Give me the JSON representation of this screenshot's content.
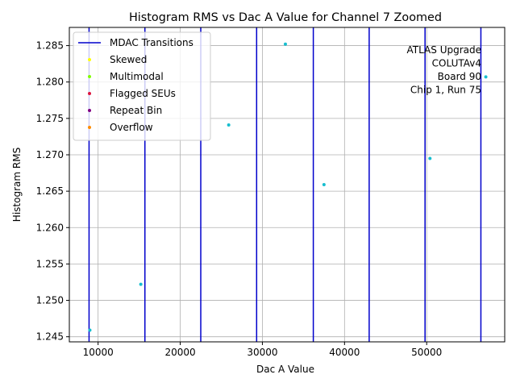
{
  "chart_data": {
    "type": "scatter",
    "title": "Histogram RMS vs Dac A Value for Channel 7 Zoomed",
    "xlabel": "Dac A Value",
    "ylabel": "Histogram RMS",
    "xlim": [
      6500,
      59500
    ],
    "ylim": [
      1.2443,
      1.2875
    ],
    "xticks": [
      10000,
      20000,
      30000,
      40000,
      50000
    ],
    "xtick_labels": [
      "10000",
      "20000",
      "30000",
      "40000",
      "50000"
    ],
    "yticks": [
      1.245,
      1.25,
      1.255,
      1.26,
      1.265,
      1.27,
      1.275,
      1.28,
      1.285
    ],
    "ytick_labels": [
      "1.245",
      "1.250",
      "1.255",
      "1.260",
      "1.265",
      "1.270",
      "1.275",
      "1.280",
      "1.285"
    ],
    "grid": true,
    "points": [
      {
        "x": 9000,
        "y": 1.2459
      },
      {
        "x": 15200,
        "y": 1.2522
      },
      {
        "x": 25900,
        "y": 1.2741
      },
      {
        "x": 32800,
        "y": 1.2852
      },
      {
        "x": 37500,
        "y": 1.2659
      },
      {
        "x": 50400,
        "y": 1.2695
      },
      {
        "x": 57200,
        "y": 1.2807
      }
    ],
    "point_color": "#17becf",
    "transitions": [
      8900,
      15700,
      22500,
      29300,
      36200,
      43000,
      49800,
      56600
    ],
    "transition_color": "#0000cc",
    "legend": {
      "placement": "top-left",
      "entries": [
        {
          "label": "MDAC Transitions",
          "kind": "line",
          "color": "#0000cc"
        },
        {
          "label": "Skewed",
          "kind": "dot",
          "color": "#ffff00"
        },
        {
          "label": "Multimodal",
          "kind": "dot",
          "color": "#7fff00"
        },
        {
          "label": "Flagged SEUs",
          "kind": "dot",
          "color": "#dc143c"
        },
        {
          "label": "Repeat Bin",
          "kind": "dot",
          "color": "#800080"
        },
        {
          "label": "Overflow",
          "kind": "dot",
          "color": "#ff8c00"
        }
      ]
    },
    "annotation": [
      "ATLAS Upgrade",
      "COLUTAv4",
      "Board 90",
      "Chip 1, Run 75"
    ]
  }
}
